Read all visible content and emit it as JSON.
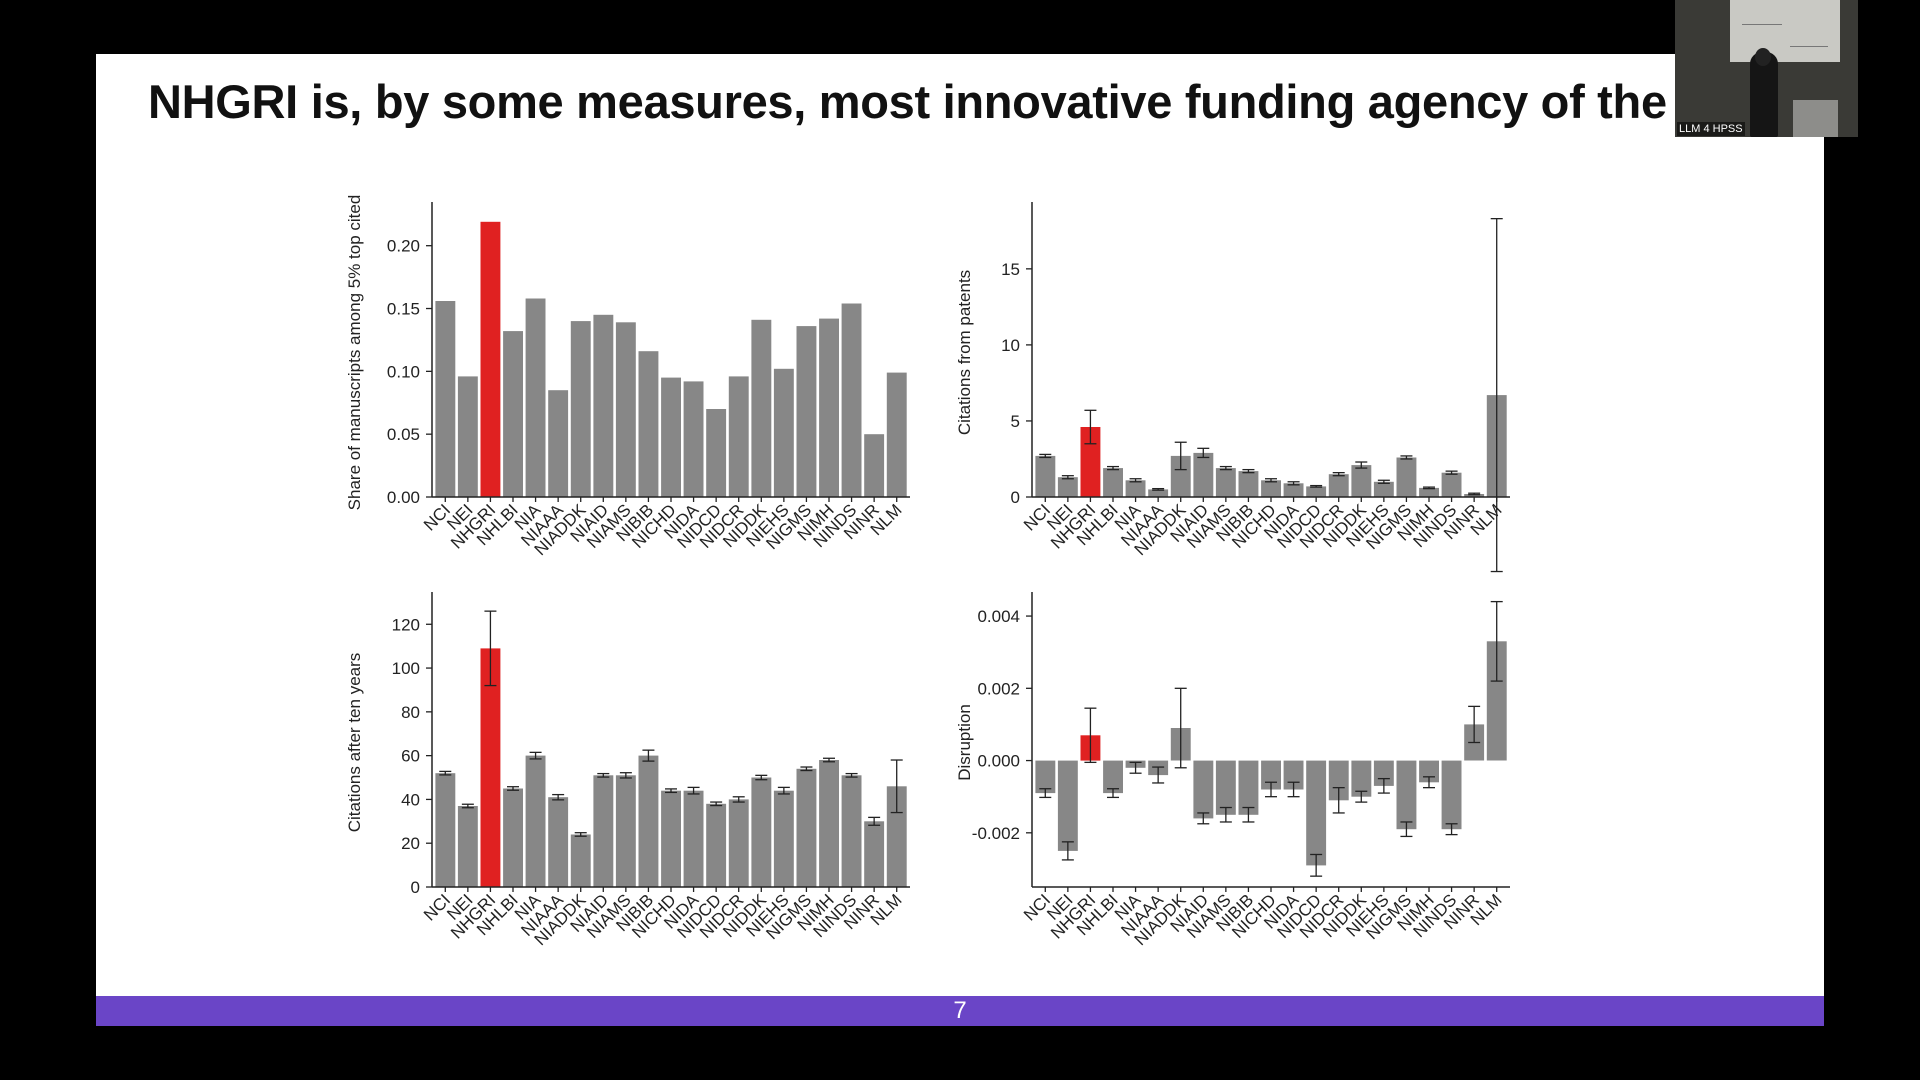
{
  "slide": {
    "title": "NHGRI is, by some measures, most innovative funding agency of the I",
    "page_number": "7"
  },
  "webcam": {
    "label": "LLM 4 HPSS"
  },
  "colors": {
    "bar": "#878787",
    "highlight": "#e02121",
    "footer": "#6a45c7",
    "background": "#ffffff"
  },
  "chart_data": [
    {
      "type": "bar",
      "categories": [
        "NCI",
        "NEI",
        "NHGRI",
        "NHLBI",
        "NIA",
        "NIAAA",
        "NIADDK",
        "NIAID",
        "NIAMS",
        "NIBIB",
        "NICHD",
        "NIDA",
        "NIDCD",
        "NIDCR",
        "NIDDK",
        "NIEHS",
        "NIGMS",
        "NIMH",
        "NINDS",
        "NINR",
        "NLM"
      ],
      "values": [
        0.156,
        0.096,
        0.219,
        0.132,
        0.158,
        0.085,
        0.14,
        0.145,
        0.139,
        0.116,
        0.095,
        0.092,
        0.07,
        0.096,
        0.141,
        0.102,
        0.136,
        0.142,
        0.154,
        0.05,
        0.099
      ],
      "errors": null,
      "highlight": "NHGRI",
      "ylabel": "Share of manuscripts among 5% top cited",
      "ylim": [
        0,
        0.23
      ],
      "yticks": [
        0,
        0.05,
        0.1,
        0.15,
        0.2
      ],
      "ytick_labels": [
        "0.00",
        "0.05",
        "0.10",
        "0.15",
        "0.20"
      ]
    },
    {
      "type": "bar",
      "categories": [
        "NCI",
        "NEI",
        "NHGRI",
        "NHLBI",
        "NIA",
        "NIAAA",
        "NIADDK",
        "NIAID",
        "NIAMS",
        "NIBIB",
        "NICHD",
        "NIDA",
        "NIDCD",
        "NIDCR",
        "NIDDK",
        "NIEHS",
        "NIGMS",
        "NIMH",
        "NINDS",
        "NINR",
        "NLM"
      ],
      "values": [
        2.7,
        1.3,
        4.6,
        1.9,
        1.1,
        0.5,
        2.7,
        2.9,
        1.9,
        1.7,
        1.1,
        0.9,
        0.7,
        1.5,
        2.1,
        1.0,
        2.6,
        0.6,
        1.6,
        0.2,
        6.7
      ],
      "errors": [
        0.1,
        0.1,
        1.1,
        0.1,
        0.1,
        0.05,
        0.9,
        0.3,
        0.1,
        0.1,
        0.1,
        0.1,
        0.05,
        0.1,
        0.2,
        0.1,
        0.1,
        0.05,
        0.1,
        0.05,
        11.6
      ],
      "highlight": "NHGRI",
      "ylabel": "Citations from patents",
      "ylim": [
        0,
        19
      ],
      "yticks": [
        0,
        5,
        10,
        15
      ],
      "ytick_labels": [
        "0",
        "5",
        "10",
        "15"
      ]
    },
    {
      "type": "bar",
      "categories": [
        "NCI",
        "NEI",
        "NHGRI",
        "NHLBI",
        "NIA",
        "NIAAA",
        "NIADDK",
        "NIAID",
        "NIAMS",
        "NIBIB",
        "NICHD",
        "NIDA",
        "NIDCD",
        "NIDCR",
        "NIDDK",
        "NIEHS",
        "NIGMS",
        "NIMH",
        "NINDS",
        "NINR",
        "NLM"
      ],
      "values": [
        52,
        37,
        109,
        45,
        60,
        41,
        24,
        51,
        51,
        60,
        44,
        44,
        38,
        40,
        50,
        44,
        54,
        58,
        51,
        30,
        46
      ],
      "errors": [
        0.8,
        0.8,
        17,
        0.8,
        1.5,
        1.2,
        0.8,
        0.8,
        1.2,
        2.5,
        0.8,
        1.5,
        0.8,
        1.2,
        1,
        1.5,
        0.8,
        0.8,
        0.8,
        1.8,
        12
      ],
      "highlight": "NHGRI",
      "ylabel": "Citations after ten years",
      "ylim": [
        0,
        132
      ],
      "yticks": [
        0,
        20,
        40,
        60,
        80,
        100,
        120
      ],
      "ytick_labels": [
        "0",
        "20",
        "40",
        "60",
        "80",
        "100",
        "120"
      ]
    },
    {
      "type": "bar",
      "categories": [
        "NCI",
        "NEI",
        "NHGRI",
        "NHLBI",
        "NIA",
        "NIAAA",
        "NIADDK",
        "NIAID",
        "NIAMS",
        "NIBIB",
        "NICHD",
        "NIDA",
        "NIDCD",
        "NIDCR",
        "NIDDK",
        "NIEHS",
        "NIGMS",
        "NIMH",
        "NINDS",
        "NINR",
        "NLM"
      ],
      "values": [
        -0.0009,
        -0.0025,
        0.0007,
        -0.0009,
        -0.0002,
        -0.0004,
        0.0009,
        -0.0016,
        -0.0015,
        -0.0015,
        -0.0008,
        -0.0008,
        -0.0029,
        -0.0011,
        -0.001,
        -0.0007,
        -0.0019,
        -0.0006,
        -0.0019,
        0.001,
        0.0033
      ],
      "errors": [
        0.00012,
        0.00025,
        0.00075,
        0.00012,
        0.00015,
        0.00022,
        0.0011,
        0.00015,
        0.0002,
        0.0002,
        0.0002,
        0.0002,
        0.0003,
        0.00035,
        0.00015,
        0.0002,
        0.0002,
        0.00015,
        0.00015,
        0.0005,
        0.0011
      ],
      "highlight": "NHGRI",
      "ylabel": "Disruption",
      "ylim": [
        -0.0035,
        0.0045
      ],
      "yticks": [
        -0.002,
        0,
        0.002,
        0.004
      ],
      "ytick_labels": [
        "-0.002",
        "0.000",
        "0.002",
        "0.004"
      ]
    }
  ]
}
